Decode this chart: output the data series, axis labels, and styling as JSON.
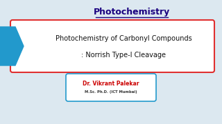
{
  "bg_color": "#dce8f0",
  "title": "Photochemistry",
  "title_color": "#1a0080",
  "title_fontsize": 9,
  "main_line1": "Photochemistry of Carbonyl Compounds",
  "main_line2": ": Norrish Type-I Cleavage",
  "main_text_color": "#111111",
  "main_fontsize": 7.0,
  "box_edge_color": "#e03030",
  "box_face_color": "#ffffff",
  "arrow_color": "#2299cc",
  "name_text": "Dr. Vikrant Palekar",
  "name_color": "#cc0000",
  "name_fontsize": 5.5,
  "qual_text": "M.Sc. Ph.D. (ICT Mumbai)",
  "qual_color": "#333333",
  "qual_fontsize": 3.8,
  "name_box_edge": "#2299cc",
  "name_box_face": "#ffffff"
}
